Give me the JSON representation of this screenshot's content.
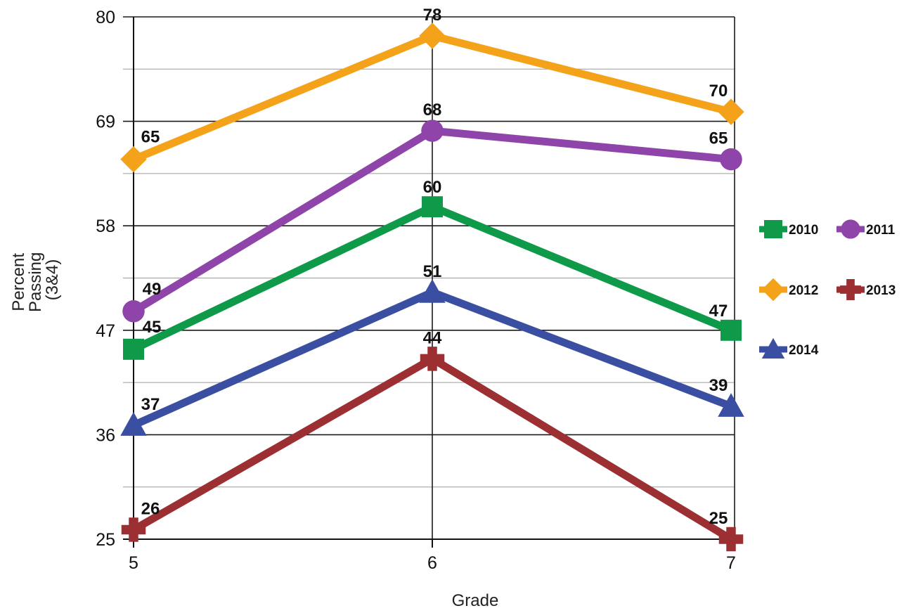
{
  "chart_data": {
    "type": "line",
    "xlabel": "Grade",
    "ylabel": [
      "Percent",
      "Passing",
      "(3&4)"
    ],
    "x": [
      "5",
      "6",
      "7"
    ],
    "yticks": [
      "25",
      "36",
      "47",
      "58",
      "69",
      "80"
    ],
    "ylim": [
      25,
      80
    ],
    "grid": true,
    "legend_position": "right",
    "series": [
      {
        "name": "2010",
        "values": [
          45,
          60,
          47
        ],
        "color": "#0f9a4a",
        "marker": "square"
      },
      {
        "name": "2011",
        "values": [
          49,
          68,
          65
        ],
        "color": "#8e44a8",
        "marker": "circle"
      },
      {
        "name": "2012",
        "values": [
          65,
          78,
          70
        ],
        "color": "#f5a21b",
        "marker": "diamond"
      },
      {
        "name": "2013",
        "values": [
          26,
          44,
          25
        ],
        "color": "#9b2f32",
        "marker": "plus"
      },
      {
        "name": "2014",
        "values": [
          37,
          51,
          39
        ],
        "color": "#3a4fa1",
        "marker": "triangle"
      }
    ]
  }
}
